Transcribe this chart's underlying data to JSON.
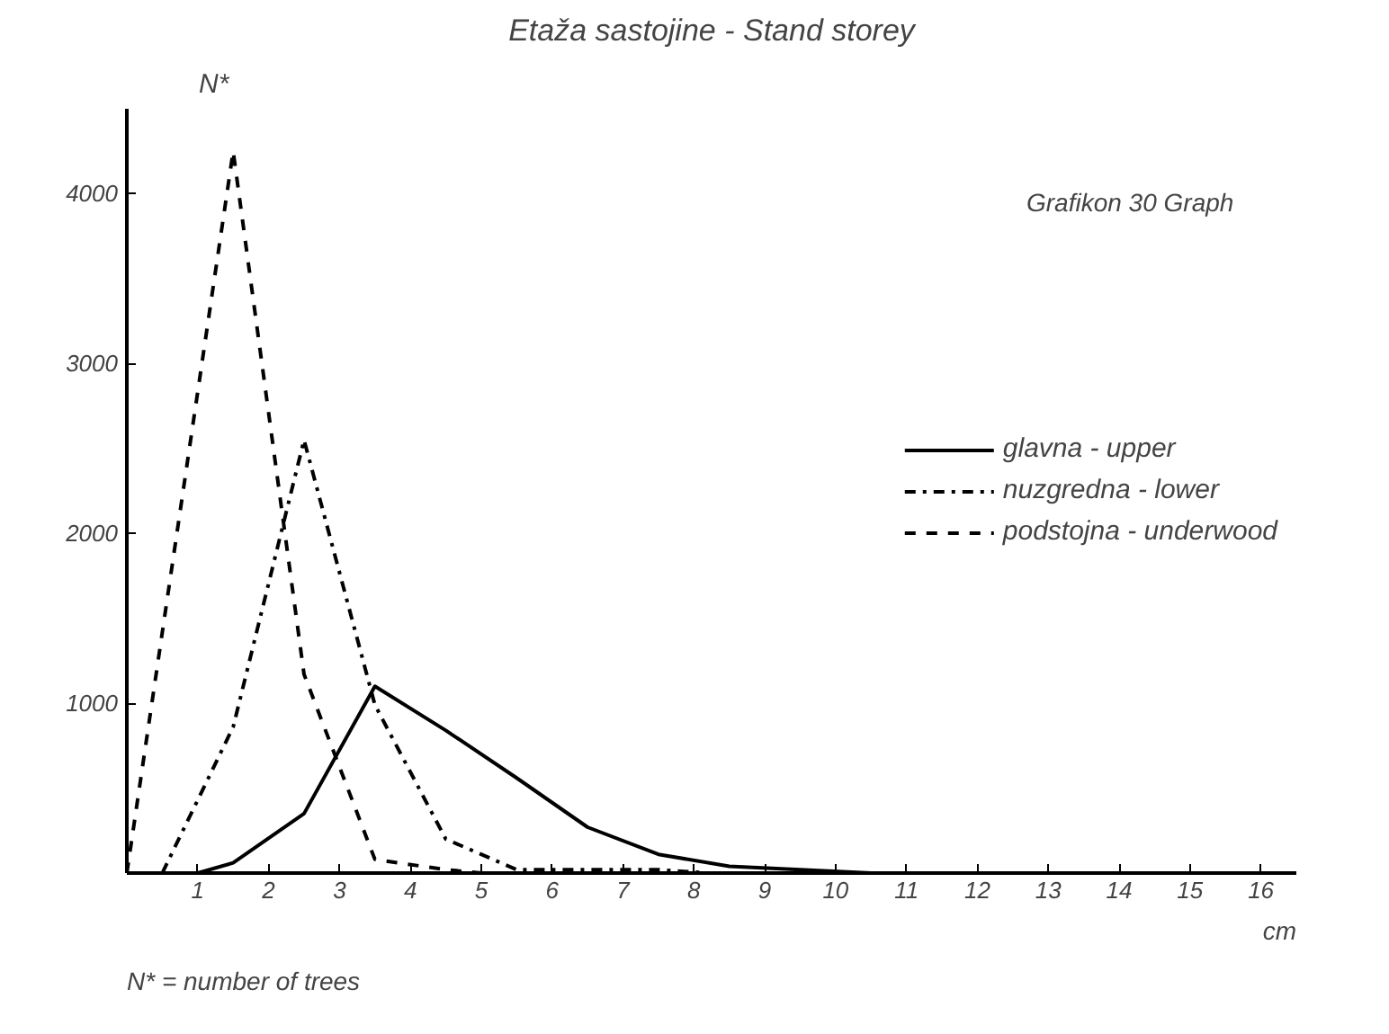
{
  "chart_data": {
    "type": "line",
    "title": "Etaža sastojine - Stand storey",
    "ylabel": "N*",
    "xlabel": "cm",
    "annotations": [
      "Grafikon 30 Graph",
      "N* = number of trees"
    ],
    "xlim": [
      0,
      16.5
    ],
    "ylim": [
      0,
      4500
    ],
    "xticks": [
      1,
      2,
      3,
      4,
      5,
      6,
      7,
      8,
      9,
      10,
      11,
      12,
      13,
      14,
      15,
      16
    ],
    "yticks": [
      1000,
      2000,
      3000,
      4000
    ],
    "grid": false,
    "legend": "right",
    "marker": "none",
    "series": [
      {
        "name": "glavna - upper",
        "color": "#000000",
        "line_style": "solid",
        "x": [
          1,
          1.5,
          2.5,
          3.5,
          4.5,
          5.5,
          6.5,
          7.5,
          8.5,
          9.5,
          10.5,
          11.5,
          16
        ],
        "values": [
          0,
          60,
          350,
          1100,
          840,
          560,
          270,
          110,
          40,
          20,
          0,
          0,
          0
        ]
      },
      {
        "name": "nuzgredna - lower",
        "color": "#000000",
        "line_style": "dashdot",
        "x": [
          0.5,
          1.5,
          2.5,
          3.5,
          4.5,
          5.5,
          6.5,
          7.5,
          8.2
        ],
        "values": [
          0,
          860,
          2550,
          990,
          200,
          20,
          20,
          20,
          0
        ]
      },
      {
        "name": "podstojna - underwood",
        "color": "#000000",
        "line_style": "dashed",
        "x": [
          0,
          1.5,
          2.5,
          3.5,
          4.5,
          5
        ],
        "values": [
          0,
          4250,
          1170,
          80,
          20,
          0
        ]
      }
    ]
  }
}
